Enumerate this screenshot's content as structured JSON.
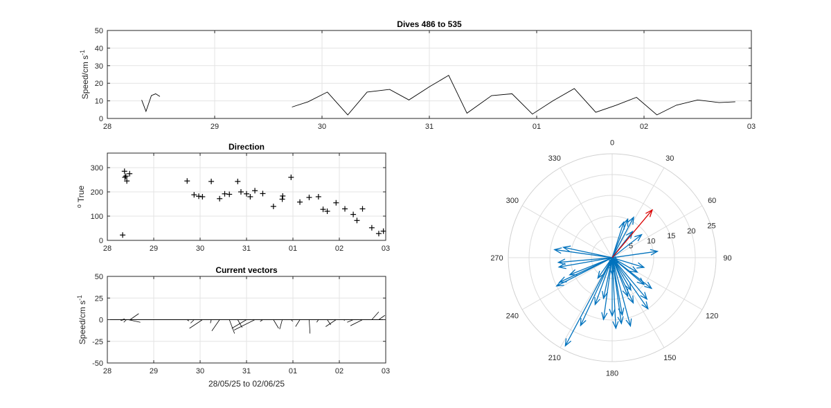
{
  "chart_data": [
    {
      "id": "speed",
      "type": "line",
      "title": "Dives 486 to 535",
      "ylabel": "Speed/cm s",
      "ylabel_sup": "-1",
      "xlabel": "",
      "xlim": [
        0,
        6
      ],
      "ylim": [
        0,
        50
      ],
      "xticks": [
        0,
        1,
        2,
        3,
        4,
        5,
        6
      ],
      "xtick_labels": [
        "28",
        "29",
        "30",
        "31",
        "01",
        "02",
        "03"
      ],
      "yticks": [
        0,
        10,
        20,
        30,
        40,
        50
      ],
      "ytick_labels": [
        "0",
        "10",
        "20",
        "30",
        "40",
        "50"
      ],
      "grid": true,
      "series": [
        {
          "x": [
            0.32,
            0.36,
            0.41,
            0.45,
            0.49
          ],
          "y": [
            10.5,
            4,
            13,
            14,
            12.5
          ]
        },
        {
          "x": [
            1.72,
            1.87,
            2.05,
            2.24,
            2.42,
            2.63,
            2.81,
            3.0,
            3.18,
            3.35,
            3.58,
            3.77,
            3.96,
            4.15,
            4.35,
            4.55,
            4.74,
            4.93,
            5.12,
            5.3,
            5.5,
            5.7,
            5.85
          ],
          "y": [
            6.5,
            9.5,
            15,
            2,
            15,
            16.5,
            10.5,
            18,
            24.5,
            3,
            13,
            14,
            2.5,
            10,
            17,
            3.5,
            7.5,
            12,
            2,
            7.5,
            10.5,
            9,
            9.5
          ]
        }
      ]
    },
    {
      "id": "direction",
      "type": "scatter",
      "title": "Direction",
      "ylabel": "True",
      "ylabel_prefix": "o",
      "xlabel": "",
      "marker": "+",
      "xlim": [
        0,
        6
      ],
      "ylim": [
        0,
        360
      ],
      "xticks": [
        0,
        1,
        2,
        3,
        4,
        5,
        6
      ],
      "xtick_labels": [
        "28",
        "29",
        "30",
        "31",
        "01",
        "02",
        "03"
      ],
      "yticks": [
        0,
        100,
        200,
        300
      ],
      "ytick_labels": [
        "0",
        "100",
        "200",
        "300"
      ],
      "grid": true,
      "x": [
        0.33,
        0.37,
        0.42,
        0.48,
        0.4,
        0.38,
        1.72,
        1.87,
        2.05,
        2.24,
        2.42,
        2.63,
        2.81,
        3.0,
        3.18,
        3.35,
        3.58,
        3.77,
        3.96,
        4.15,
        4.35,
        4.55,
        4.74,
        4.93,
        5.12,
        5.3,
        5.5,
        5.7,
        5.85,
        1.97,
        2.88,
        2.53,
        3.08,
        3.78,
        4.65,
        5.38,
        5.95
      ],
      "y": [
        22,
        285,
        245,
        275,
        265,
        260,
        245,
        188,
        180,
        243,
        172,
        190,
        243,
        192,
        205,
        193,
        140,
        170,
        260,
        158,
        177,
        180,
        120,
        155,
        130,
        107,
        130,
        52,
        28,
        182,
        200,
        192,
        180,
        183,
        128,
        82,
        38
      ]
    },
    {
      "id": "vectors",
      "type": "line",
      "title": "Current vectors",
      "ylabel": "Speed/cm s",
      "ylabel_sup": "-1",
      "xlabel": "28/05/25 to 02/06/25",
      "xlim": [
        0,
        6
      ],
      "ylim": [
        -50,
        50
      ],
      "xticks": [
        0,
        1,
        2,
        3,
        4,
        5,
        6
      ],
      "xtick_labels": [
        "28",
        "29",
        "30",
        "31",
        "01",
        "02",
        "03"
      ],
      "yticks": [
        -50,
        -25,
        0,
        25,
        50
      ],
      "ytick_labels": [
        "-50",
        "-25",
        "0",
        "25",
        "50"
      ],
      "grid": true,
      "sticks": [
        {
          "x": 0.32,
          "u": 3,
          "v": 1
        },
        {
          "x": 0.36,
          "u": -4,
          "v": -1
        },
        {
          "x": 0.41,
          "u": -3,
          "v": -3
        },
        {
          "x": 0.45,
          "u": 14,
          "v": -3
        },
        {
          "x": 0.49,
          "u": 10,
          "v": 7
        },
        {
          "x": 1.72,
          "u": 2,
          "v": -1.5
        },
        {
          "x": 1.87,
          "u": -4,
          "v": -4
        },
        {
          "x": 2.05,
          "u": -15,
          "v": -10
        },
        {
          "x": 2.24,
          "u": -1,
          "v": -4
        },
        {
          "x": 2.42,
          "u": -9,
          "v": -13
        },
        {
          "x": 2.63,
          "u": 6,
          "v": -16
        },
        {
          "x": 2.81,
          "u": 5,
          "v": -9
        },
        {
          "x": 3.0,
          "u": -17,
          "v": -10
        },
        {
          "x": 3.18,
          "u": -24,
          "v": -12
        },
        {
          "x": 3.35,
          "u": -3,
          "v": -2
        },
        {
          "x": 3.58,
          "u": 6,
          "v": -10
        },
        {
          "x": 3.77,
          "u": -3,
          "v": -11
        },
        {
          "x": 3.96,
          "u": 2,
          "v": -2
        },
        {
          "x": 4.15,
          "u": -5,
          "v": -8
        },
        {
          "x": 4.35,
          "u": 1,
          "v": -16
        },
        {
          "x": 4.55,
          "u": -2,
          "v": -3
        },
        {
          "x": 4.74,
          "u": 4,
          "v": -6
        },
        {
          "x": 4.93,
          "u": -12,
          "v": -8
        },
        {
          "x": 5.12,
          "u": -1,
          "v": -1
        },
        {
          "x": 5.3,
          "u": -7,
          "v": -3
        },
        {
          "x": 5.5,
          "u": -14,
          "v": -7
        },
        {
          "x": 5.7,
          "u": 8,
          "v": 9
        },
        {
          "x": 5.85,
          "u": 7,
          "v": 5
        }
      ]
    },
    {
      "id": "polar",
      "type": "scatter",
      "title": "",
      "polar": true,
      "rlim": [
        0,
        25
      ],
      "r_ticks": [
        "5",
        "10",
        "15",
        "20",
        "25"
      ],
      "angle_ticks": [
        "0",
        "30",
        "60",
        "90",
        "120",
        "150",
        "180",
        "210",
        "240",
        "270",
        "300",
        "330"
      ],
      "grid": true,
      "vectors": [
        {
          "dir": 22,
          "speed": 10
        },
        {
          "dir": 18,
          "speed": 9
        },
        {
          "dir": 260,
          "speed": 13
        },
        {
          "dir": 278,
          "speed": 14
        },
        {
          "dir": 282,
          "speed": 12
        },
        {
          "dir": 245,
          "speed": 14
        },
        {
          "dir": 248,
          "speed": 11
        },
        {
          "dir": 265,
          "speed": 13
        },
        {
          "dir": 188,
          "speed": 15
        },
        {
          "dir": 180,
          "speed": 14
        },
        {
          "dir": 243,
          "speed": 15
        },
        {
          "dir": 172,
          "speed": 16
        },
        {
          "dir": 192,
          "speed": 10
        },
        {
          "dir": 205,
          "speed": 18
        },
        {
          "dir": 208,
          "speed": 24
        },
        {
          "dir": 193,
          "speed": 2
        },
        {
          "dir": 140,
          "speed": 13
        },
        {
          "dir": 170,
          "speed": 14
        },
        {
          "dir": 158,
          "speed": 10
        },
        {
          "dir": 177,
          "speed": 17
        },
        {
          "dir": 180,
          "speed": 4
        },
        {
          "dir": 120,
          "speed": 7
        },
        {
          "dir": 155,
          "speed": 12
        },
        {
          "dir": 130,
          "speed": 2
        },
        {
          "dir": 107,
          "speed": 8
        },
        {
          "dir": 130,
          "speed": 10
        },
        {
          "dir": 52,
          "speed": 9
        },
        {
          "dir": 28,
          "speed": 11
        },
        {
          "dir": 82,
          "speed": 11
        },
        {
          "dir": 38,
          "speed": 8
        },
        {
          "dir": 128,
          "speed": 12
        },
        {
          "dir": 145,
          "speed": 15
        },
        {
          "dir": 165,
          "speed": 17
        },
        {
          "dir": 150,
          "speed": 9
        },
        {
          "dir": 200,
          "speed": 12
        },
        {
          "dir": 215,
          "speed": 6
        }
      ],
      "mean_vector": {
        "dir": 40,
        "speed": 15
      },
      "vector_color": "#0072BD",
      "mean_color": "#D90000"
    }
  ]
}
